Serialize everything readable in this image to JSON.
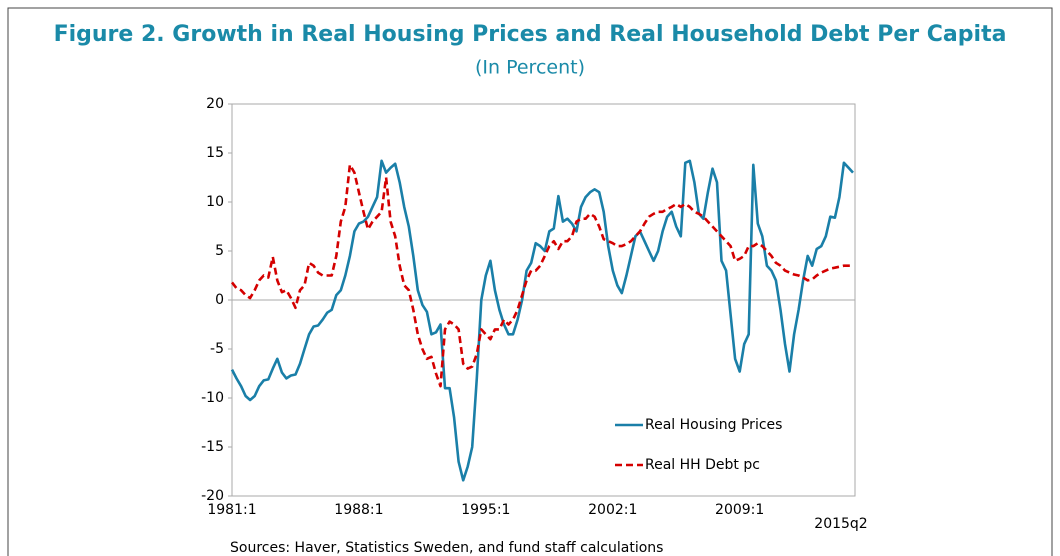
{
  "chart_data": {
    "type": "line",
    "title": "Figure 2. Growth in Real Housing Prices and Real Household Debt Per Capita",
    "subtitle": "(In Percent)",
    "source": "Sources: Haver, Statistics Sweden, and fund staff calculations",
    "categories": [
      "1981:1",
      null,
      null,
      null,
      null,
      null,
      null,
      null,
      null,
      null,
      null,
      null,
      null,
      null,
      null,
      null,
      null,
      null,
      null,
      null,
      null,
      null,
      null,
      null,
      null,
      null,
      null,
      null,
      "1988:1",
      null,
      null,
      null,
      null,
      null,
      null,
      null,
      null,
      null,
      null,
      null,
      null,
      null,
      null,
      null,
      null,
      null,
      null,
      null,
      null,
      null,
      null,
      null,
      null,
      null,
      null,
      null,
      "1995:1",
      null,
      null,
      null,
      null,
      null,
      null,
      null,
      null,
      null,
      null,
      null,
      null,
      null,
      null,
      null,
      null,
      null,
      null,
      null,
      null,
      null,
      null,
      null,
      null,
      null,
      null,
      null,
      "2002:1",
      null,
      null,
      null,
      null,
      null,
      null,
      null,
      null,
      null,
      null,
      null,
      null,
      null,
      null,
      null,
      null,
      null,
      null,
      null,
      null,
      null,
      null,
      null,
      null,
      null,
      null,
      null,
      "2009:1",
      null,
      null,
      null,
      null,
      null,
      null,
      null,
      null,
      null,
      null,
      null,
      null,
      null,
      null,
      null,
      null,
      null,
      null,
      null,
      null,
      null,
      null,
      null,
      null,
      "2015q2"
    ],
    "series": [
      {
        "name": "Real Housing Prices",
        "color": "#1a7fa8",
        "dash": false,
        "values": [
          -7.1,
          -8,
          -8.8,
          -9.8,
          -10.2,
          -9.8,
          -8.8,
          -8.2,
          -8.1,
          -7,
          -6,
          -7.4,
          -8,
          -7.7,
          -7.6,
          -6.5,
          -5,
          -3.5,
          -2.7,
          -2.6,
          -2,
          -1.3,
          -1,
          0.5,
          1,
          2.5,
          4.5,
          7,
          7.8,
          8,
          8.5,
          9.5,
          10.5,
          14.2,
          13,
          13.5,
          13.9,
          12,
          9.5,
          7.5,
          4.5,
          1,
          -0.5,
          -1.2,
          -3.5,
          -3.3,
          -2.5,
          -9,
          -9,
          -12,
          -16.5,
          -18.4,
          -17,
          -15,
          -8,
          0,
          2.5,
          4,
          1,
          -1,
          -2.5,
          -3.5,
          -3.5,
          -2,
          0,
          3,
          3.8,
          5.8,
          5.5,
          5,
          7,
          7.3,
          10.6,
          8,
          8.3,
          7.8,
          7,
          9.5,
          10.5,
          11,
          11.3,
          11,
          9,
          5.5,
          3,
          1.5,
          0.7,
          2.5,
          4.5,
          6.5,
          7,
          6,
          5,
          4,
          5,
          7,
          8.5,
          9,
          7.5,
          6.5,
          14,
          14.2,
          12,
          8.8,
          8.3,
          11,
          13.4,
          12,
          4,
          3,
          -1.5,
          -6,
          -7.3,
          -4.5,
          -3.5,
          13.8,
          7.8,
          6.5,
          3.5,
          3,
          2,
          -1,
          -4.5,
          -7.3,
          -3.5,
          -1,
          2,
          4.5,
          3.5,
          5.2,
          5.5,
          6.5,
          8.5,
          8.4,
          10.5,
          14,
          13.5,
          13
        ]
      },
      {
        "name": "Real HH Debt pc",
        "color": "#d40000",
        "dash": true,
        "values": [
          1.8,
          1.2,
          1,
          0.5,
          0.2,
          1,
          2,
          2.5,
          2.3,
          4.4,
          2,
          0.8,
          1,
          0.2,
          -0.8,
          1,
          1.5,
          3.8,
          3.5,
          2.8,
          2.5,
          2.5,
          2.5,
          4.5,
          8,
          9.5,
          13.8,
          13,
          11,
          9,
          7.2,
          8,
          8.5,
          9,
          12.5,
          8,
          6.5,
          3.5,
          1.5,
          1,
          -1,
          -3.5,
          -5,
          -6,
          -5.8,
          -7.5,
          -8.8,
          -3,
          -2.2,
          -2.5,
          -3,
          -6.5,
          -7,
          -6.8,
          -5.5,
          -3,
          -3.5,
          -4,
          -3,
          -3,
          -2,
          -2.5,
          -2,
          -1,
          0.5,
          2,
          3,
          3,
          3.5,
          4.5,
          5.5,
          6,
          5.2,
          6,
          6,
          6.5,
          8,
          8.3,
          8.3,
          8.8,
          8.5,
          7.5,
          6.2,
          6,
          5.8,
          5.5,
          5.5,
          5.7,
          6,
          6.5,
          7,
          7.8,
          8.5,
          8.8,
          9,
          9,
          9.3,
          9.5,
          9.8,
          9.5,
          9.8,
          9.5,
          9,
          8.8,
          8.5,
          8,
          7.5,
          7,
          6.5,
          6,
          5.5,
          4,
          4.2,
          4.5,
          5.5,
          5.5,
          5.8,
          5.5,
          5,
          4.5,
          3.8,
          3.5,
          3,
          2.8,
          2.6,
          2.5,
          2.3,
          2,
          2.1,
          2.5,
          2.8,
          3,
          3.2,
          3.3,
          3.4,
          3.5,
          3.5,
          3.5
        ]
      }
    ],
    "ylim": [
      -20,
      20
    ],
    "yticks": [
      -20,
      -15,
      -10,
      -5,
      0,
      5,
      10,
      15,
      20
    ],
    "grid": false,
    "legend": "bottom-right"
  }
}
